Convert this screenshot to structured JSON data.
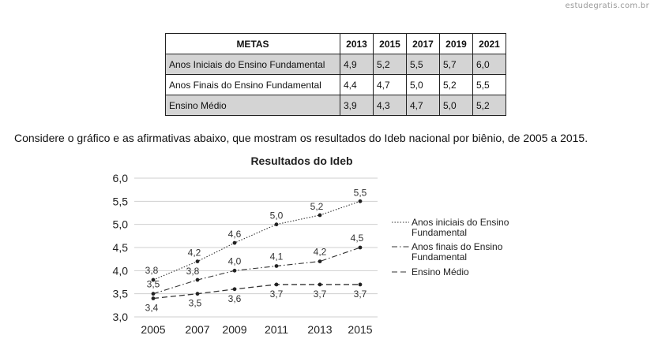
{
  "watermark": "estudegratis.com.br",
  "metas_table": {
    "header": [
      "METAS",
      "2013",
      "2015",
      "2017",
      "2019",
      "2021"
    ],
    "rows": [
      {
        "label": "Anos Iniciais do Ensino Fundamental",
        "values": [
          "4,9",
          "5,2",
          "5,5",
          "5,7",
          "6,0"
        ]
      },
      {
        "label": "Anos Finais do Ensino Fundamental",
        "values": [
          "4,4",
          "4,7",
          "5,0",
          "5,2",
          "5,5"
        ]
      },
      {
        "label": "Ensino Médio",
        "values": [
          "3,9",
          "4,3",
          "4,7",
          "5,0",
          "5,2"
        ]
      }
    ]
  },
  "intro_text": "Considere o gráfico e as afirmativas abaixo, que mostram os resultados do Ideb nacional por biênio, de 2005 a 2015.",
  "chart_data": {
    "type": "line",
    "title": "Resultados do Ideb",
    "x": [
      2005,
      2007,
      2009,
      2011,
      2013,
      2015
    ],
    "x_labels": [
      "2005",
      "2007",
      "2009",
      "2011",
      "2013",
      "2015"
    ],
    "ylim": [
      3.0,
      6.0
    ],
    "y_ticks": [
      "3,0",
      "3,5",
      "4,0",
      "4,5",
      "5,0",
      "5,5",
      "6,0"
    ],
    "legend_position": "right",
    "series": [
      {
        "name": "Anos iniciais do Ensino Fundamental",
        "values": [
          3.8,
          4.2,
          4.6,
          5.0,
          5.2,
          5.5
        ],
        "labels": [
          "3,8",
          "4,2",
          "4,6",
          "5,0",
          "5,2",
          "5,5"
        ],
        "style": "dotted"
      },
      {
        "name": "Anos finais do Ensino Fundamental",
        "values": [
          3.5,
          3.8,
          4.0,
          4.1,
          4.2,
          4.5
        ],
        "labels": [
          "3,5",
          "3,8",
          "4,0",
          "4,1",
          "4,2",
          "4,5"
        ],
        "style": "dashdot"
      },
      {
        "name": "Ensino Médio",
        "values": [
          3.4,
          3.5,
          3.6,
          3.7,
          3.7,
          3.7
        ],
        "labels": [
          "3,4",
          "3,5",
          "3,6",
          "3,7",
          "3,7",
          "3,7"
        ],
        "style": "dashed"
      }
    ]
  }
}
